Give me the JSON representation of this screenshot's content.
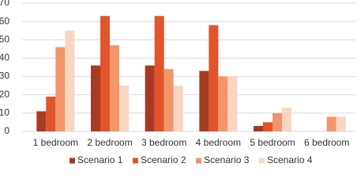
{
  "chart_data": {
    "type": "bar",
    "categories": [
      "1 bedroom",
      "2 bedroom",
      "3 bedroom",
      "4 bedroom",
      "5 bedroom",
      "6 bedroom"
    ],
    "series": [
      {
        "name": "Scenario 1",
        "color": "#a63b22",
        "values": [
          11,
          36,
          36,
          33,
          3,
          0
        ]
      },
      {
        "name": "Scenario 2",
        "color": "#e2542b",
        "values": [
          19,
          63,
          63,
          58,
          5,
          0
        ]
      },
      {
        "name": "Scenario 3",
        "color": "#f2956b",
        "values": [
          46,
          47,
          34,
          30,
          10,
          8
        ]
      },
      {
        "name": "Scenario 4",
        "color": "#f9d6c2",
        "values": [
          55,
          25,
          25,
          30,
          13,
          8
        ]
      }
    ],
    "ylim": [
      0,
      70
    ],
    "yticks": [
      0,
      10,
      20,
      30,
      40,
      50,
      60,
      70
    ],
    "grid": true,
    "legend": "bottom"
  }
}
